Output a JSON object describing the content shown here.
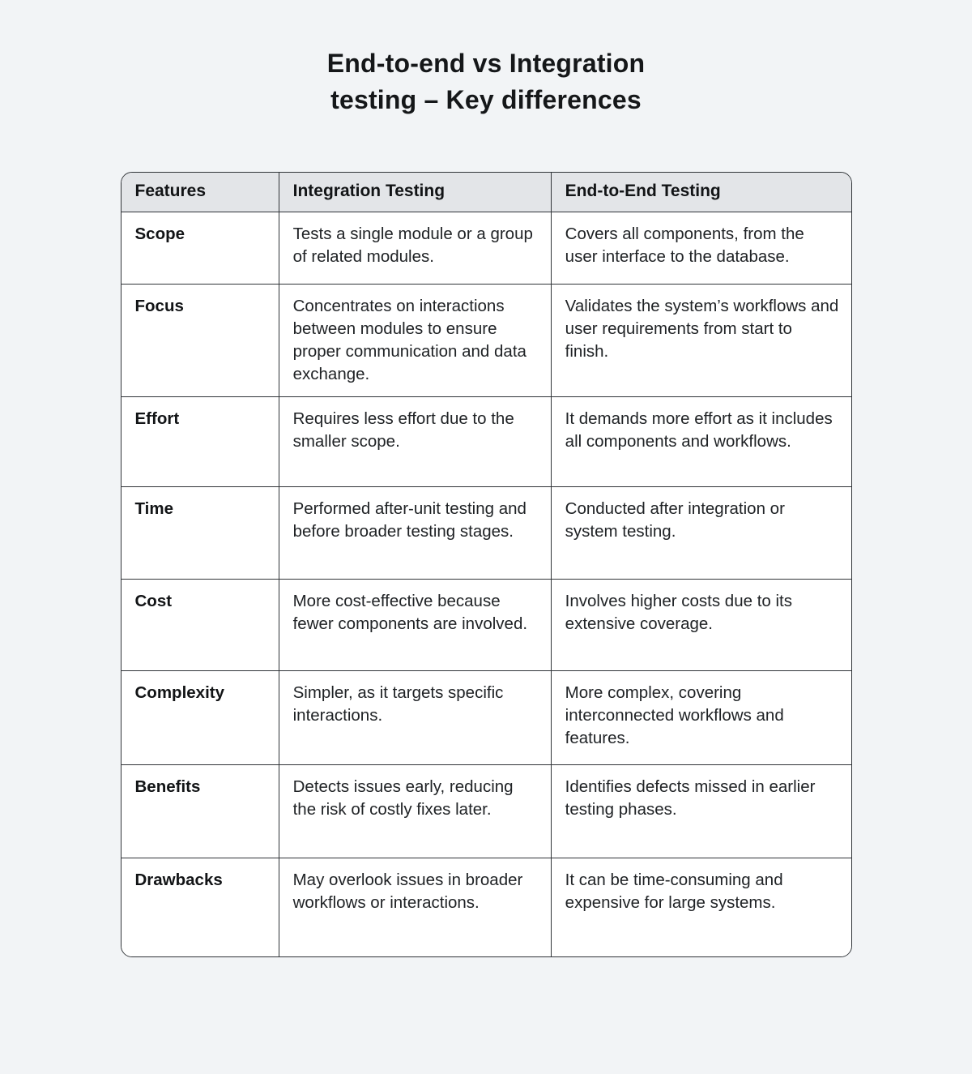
{
  "title": {
    "line1": "End-to-end vs Integration",
    "line2": "testing – Key differences"
  },
  "table": {
    "headers": [
      "Features",
      "Integration Testing",
      "End-to-End Testing"
    ],
    "rows": [
      {
        "feature": "Scope",
        "integration": "Tests a single module or a group of related modules.",
        "e2e": "Covers all components, from the user interface to the database."
      },
      {
        "feature": "Focus",
        "integration": "Concentrates on interactions between modules to ensure proper communication and data exchange.",
        "e2e": "Validates the system’s workflows and user requirements from start to finish."
      },
      {
        "feature": "Effort",
        "integration": "Requires less effort due to the smaller scope.",
        "e2e": "It demands more effort as it includes all components and workflows."
      },
      {
        "feature": "Time",
        "integration": "Performed after-unit testing and before broader testing stages.",
        "e2e": "Conducted after integration or system testing."
      },
      {
        "feature": "Cost",
        "integration": "More cost-effective because fewer components are involved.",
        "e2e": "Involves higher costs due to its extensive coverage."
      },
      {
        "feature": "Complexity",
        "integration": "Simpler, as it targets specific interactions.",
        "e2e": "More complex, covering interconnected workflows and features."
      },
      {
        "feature": "Benefits",
        "integration": "Detects issues early, reducing the risk of costly fixes later.",
        "e2e": "Identifies defects missed in earlier testing phases."
      },
      {
        "feature": "Drawbacks",
        "integration": "May overlook issues in broader workflows or interactions.",
        "e2e": "It can be time-consuming and expensive for large systems."
      }
    ]
  },
  "colors": {
    "page_background": "#f2f4f6",
    "header_background": "#e3e5e8",
    "cell_background": "#ffffff",
    "border": "#303438",
    "text": "#202326"
  }
}
